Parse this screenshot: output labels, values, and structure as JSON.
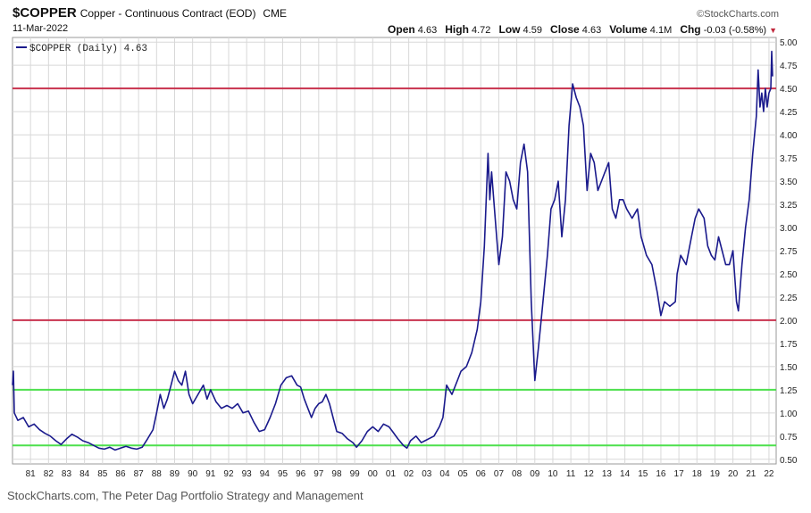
{
  "header": {
    "symbol": "$COPPER",
    "description": "Copper - Continuous Contract (EOD)",
    "exchange": "CME",
    "date": "11-Mar-2022",
    "brand": "©StockCharts.com"
  },
  "quote": {
    "open_label": "Open",
    "open": "4.63",
    "high_label": "High",
    "high": "4.72",
    "low_label": "Low",
    "low": "4.59",
    "close_label": "Close",
    "close": "4.63",
    "volume_label": "Volume",
    "volume": "4.1M",
    "chg_label": "Chg",
    "chg": "-0.03 (-0.58%)",
    "chg_arrow": "▼"
  },
  "caption": "StockCharts.com, The Peter Dag Portfolio Strategy and Management",
  "colors": {
    "series": "#1a1a8c",
    "red_line": "#c8324e",
    "green_line": "#4de04d",
    "grid": "#d8d8d8"
  },
  "chart_data": {
    "type": "line",
    "title": "$COPPER Copper - Continuous Contract (EOD) CME",
    "legend": "$COPPER (Daily) 4.63",
    "legend_position": "top-left",
    "xlabel": "",
    "ylabel": "",
    "xlim": [
      1980.0,
      2022.4
    ],
    "ylim": [
      0.45,
      5.05
    ],
    "y_ticks": [
      "0.50",
      "0.75",
      "1.00",
      "1.25",
      "1.50",
      "1.75",
      "2.00",
      "2.25",
      "2.50",
      "2.75",
      "3.00",
      "3.25",
      "3.50",
      "3.75",
      "4.00",
      "4.25",
      "4.50",
      "4.75",
      "5.00"
    ],
    "x_ticks": [
      "81",
      "82",
      "83",
      "84",
      "85",
      "86",
      "87",
      "88",
      "89",
      "90",
      "91",
      "92",
      "93",
      "94",
      "95",
      "96",
      "97",
      "98",
      "99",
      "00",
      "01",
      "02",
      "03",
      "04",
      "05",
      "06",
      "07",
      "08",
      "09",
      "10",
      "11",
      "12",
      "13",
      "14",
      "15",
      "16",
      "17",
      "18",
      "19",
      "20",
      "21",
      "22"
    ],
    "hlines": [
      {
        "y": 4.5,
        "color": "red"
      },
      {
        "y": 2.0,
        "color": "red"
      },
      {
        "y": 1.25,
        "color": "green"
      },
      {
        "y": 0.65,
        "color": "green"
      }
    ],
    "series": [
      {
        "name": "$COPPER (Daily)",
        "last": 4.63,
        "points": [
          [
            1980.0,
            1.3
          ],
          [
            1980.05,
            1.45
          ],
          [
            1980.1,
            1.0
          ],
          [
            1980.3,
            0.92
          ],
          [
            1980.6,
            0.95
          ],
          [
            1980.9,
            0.85
          ],
          [
            1981.2,
            0.88
          ],
          [
            1981.5,
            0.82
          ],
          [
            1981.8,
            0.78
          ],
          [
            1982.1,
            0.75
          ],
          [
            1982.4,
            0.7
          ],
          [
            1982.7,
            0.66
          ],
          [
            1983.0,
            0.72
          ],
          [
            1983.3,
            0.77
          ],
          [
            1983.6,
            0.74
          ],
          [
            1983.9,
            0.7
          ],
          [
            1984.2,
            0.68
          ],
          [
            1984.5,
            0.65
          ],
          [
            1984.8,
            0.62
          ],
          [
            1985.1,
            0.61
          ],
          [
            1985.4,
            0.63
          ],
          [
            1985.7,
            0.6
          ],
          [
            1986.0,
            0.62
          ],
          [
            1986.3,
            0.64
          ],
          [
            1986.6,
            0.62
          ],
          [
            1986.9,
            0.61
          ],
          [
            1987.2,
            0.63
          ],
          [
            1987.5,
            0.72
          ],
          [
            1987.8,
            0.82
          ],
          [
            1988.0,
            1.0
          ],
          [
            1988.2,
            1.2
          ],
          [
            1988.4,
            1.05
          ],
          [
            1988.6,
            1.15
          ],
          [
            1988.8,
            1.3
          ],
          [
            1989.0,
            1.45
          ],
          [
            1989.2,
            1.35
          ],
          [
            1989.4,
            1.3
          ],
          [
            1989.6,
            1.45
          ],
          [
            1989.8,
            1.2
          ],
          [
            1990.0,
            1.1
          ],
          [
            1990.3,
            1.2
          ],
          [
            1990.6,
            1.3
          ],
          [
            1990.8,
            1.15
          ],
          [
            1991.0,
            1.25
          ],
          [
            1991.3,
            1.12
          ],
          [
            1991.6,
            1.05
          ],
          [
            1991.9,
            1.08
          ],
          [
            1992.2,
            1.05
          ],
          [
            1992.5,
            1.1
          ],
          [
            1992.8,
            1.0
          ],
          [
            1993.1,
            1.02
          ],
          [
            1993.4,
            0.9
          ],
          [
            1993.7,
            0.8
          ],
          [
            1994.0,
            0.82
          ],
          [
            1994.3,
            0.95
          ],
          [
            1994.6,
            1.1
          ],
          [
            1994.9,
            1.3
          ],
          [
            1995.2,
            1.38
          ],
          [
            1995.5,
            1.4
          ],
          [
            1995.8,
            1.3
          ],
          [
            1996.0,
            1.28
          ],
          [
            1996.2,
            1.15
          ],
          [
            1996.4,
            1.05
          ],
          [
            1996.6,
            0.95
          ],
          [
            1996.8,
            1.05
          ],
          [
            1997.0,
            1.1
          ],
          [
            1997.2,
            1.12
          ],
          [
            1997.4,
            1.2
          ],
          [
            1997.6,
            1.1
          ],
          [
            1997.8,
            0.95
          ],
          [
            1998.0,
            0.8
          ],
          [
            1998.3,
            0.78
          ],
          [
            1998.6,
            0.72
          ],
          [
            1998.9,
            0.68
          ],
          [
            1999.1,
            0.63
          ],
          [
            1999.4,
            0.7
          ],
          [
            1999.7,
            0.8
          ],
          [
            2000.0,
            0.85
          ],
          [
            2000.3,
            0.8
          ],
          [
            2000.6,
            0.88
          ],
          [
            2000.9,
            0.85
          ],
          [
            2001.1,
            0.8
          ],
          [
            2001.4,
            0.72
          ],
          [
            2001.7,
            0.65
          ],
          [
            2001.9,
            0.62
          ],
          [
            2002.1,
            0.7
          ],
          [
            2002.4,
            0.75
          ],
          [
            2002.7,
            0.68
          ],
          [
            2002.9,
            0.7
          ],
          [
            2003.1,
            0.72
          ],
          [
            2003.4,
            0.75
          ],
          [
            2003.7,
            0.85
          ],
          [
            2003.9,
            0.95
          ],
          [
            2004.1,
            1.3
          ],
          [
            2004.4,
            1.2
          ],
          [
            2004.7,
            1.35
          ],
          [
            2004.9,
            1.45
          ],
          [
            2005.2,
            1.5
          ],
          [
            2005.5,
            1.65
          ],
          [
            2005.8,
            1.9
          ],
          [
            2006.0,
            2.2
          ],
          [
            2006.2,
            2.8
          ],
          [
            2006.4,
            3.8
          ],
          [
            2006.5,
            3.3
          ],
          [
            2006.6,
            3.6
          ],
          [
            2006.8,
            3.1
          ],
          [
            2007.0,
            2.6
          ],
          [
            2007.2,
            2.9
          ],
          [
            2007.4,
            3.6
          ],
          [
            2007.6,
            3.5
          ],
          [
            2007.8,
            3.3
          ],
          [
            2008.0,
            3.2
          ],
          [
            2008.2,
            3.7
          ],
          [
            2008.4,
            3.9
          ],
          [
            2008.6,
            3.6
          ],
          [
            2008.8,
            2.2
          ],
          [
            2009.0,
            1.35
          ],
          [
            2009.2,
            1.7
          ],
          [
            2009.4,
            2.1
          ],
          [
            2009.7,
            2.7
          ],
          [
            2009.9,
            3.2
          ],
          [
            2010.1,
            3.3
          ],
          [
            2010.3,
            3.5
          ],
          [
            2010.5,
            2.9
          ],
          [
            2010.7,
            3.3
          ],
          [
            2010.9,
            4.1
          ],
          [
            2011.1,
            4.55
          ],
          [
            2011.3,
            4.4
          ],
          [
            2011.5,
            4.3
          ],
          [
            2011.7,
            4.1
          ],
          [
            2011.9,
            3.4
          ],
          [
            2012.1,
            3.8
          ],
          [
            2012.3,
            3.7
          ],
          [
            2012.5,
            3.4
          ],
          [
            2012.7,
            3.5
          ],
          [
            2012.9,
            3.6
          ],
          [
            2013.1,
            3.7
          ],
          [
            2013.3,
            3.2
          ],
          [
            2013.5,
            3.1
          ],
          [
            2013.7,
            3.3
          ],
          [
            2013.9,
            3.3
          ],
          [
            2014.1,
            3.2
          ],
          [
            2014.4,
            3.1
          ],
          [
            2014.7,
            3.2
          ],
          [
            2014.9,
            2.9
          ],
          [
            2015.2,
            2.7
          ],
          [
            2015.5,
            2.6
          ],
          [
            2015.8,
            2.3
          ],
          [
            2016.0,
            2.05
          ],
          [
            2016.2,
            2.2
          ],
          [
            2016.5,
            2.15
          ],
          [
            2016.8,
            2.2
          ],
          [
            2016.9,
            2.5
          ],
          [
            2017.1,
            2.7
          ],
          [
            2017.4,
            2.6
          ],
          [
            2017.7,
            2.9
          ],
          [
            2017.9,
            3.1
          ],
          [
            2018.1,
            3.2
          ],
          [
            2018.4,
            3.1
          ],
          [
            2018.6,
            2.8
          ],
          [
            2018.8,
            2.7
          ],
          [
            2019.0,
            2.65
          ],
          [
            2019.2,
            2.9
          ],
          [
            2019.4,
            2.75
          ],
          [
            2019.6,
            2.6
          ],
          [
            2019.8,
            2.6
          ],
          [
            2020.0,
            2.75
          ],
          [
            2020.2,
            2.2
          ],
          [
            2020.3,
            2.1
          ],
          [
            2020.5,
            2.6
          ],
          [
            2020.7,
            3.0
          ],
          [
            2020.9,
            3.3
          ],
          [
            2021.1,
            3.8
          ],
          [
            2021.3,
            4.2
          ],
          [
            2021.4,
            4.7
          ],
          [
            2021.5,
            4.3
          ],
          [
            2021.6,
            4.45
          ],
          [
            2021.7,
            4.25
          ],
          [
            2021.8,
            4.5
          ],
          [
            2021.9,
            4.3
          ],
          [
            2022.0,
            4.45
          ],
          [
            2022.1,
            4.5
          ],
          [
            2022.15,
            4.9
          ],
          [
            2022.2,
            4.63
          ]
        ]
      }
    ]
  }
}
